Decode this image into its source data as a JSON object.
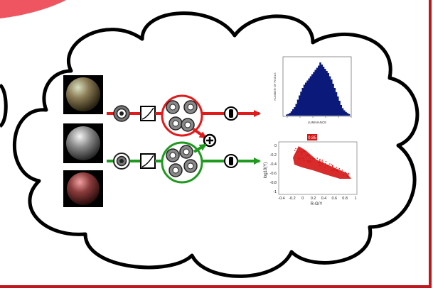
{
  "colors": {
    "border": "#c0161e",
    "cloud_stroke": "#000000",
    "red_path": "#e11b1b",
    "green_path": "#1f9a1f",
    "histogram_fill": "#0b1a7a",
    "scatter_fill": "#d41515"
  },
  "spheres": [
    {
      "name": "colored-sphere",
      "base": "#8a7a55",
      "highlight": "#c9d6b0"
    },
    {
      "name": "gray-sphere",
      "base": "#6e6e6e",
      "highlight": "#eeeeee"
    },
    {
      "name": "red-sphere",
      "base": "#7a3333",
      "highlight": "#e89a9a"
    }
  ],
  "histogram": {
    "xlabel": "LUMINANCE",
    "ylabel": "NUMBER OF PIXELS",
    "heights": [
      0.02,
      0.03,
      0.05,
      0.08,
      0.12,
      0.16,
      0.22,
      0.3,
      0.38,
      0.45,
      0.52,
      0.58,
      0.62,
      0.66,
      0.7,
      0.74,
      0.78,
      0.82,
      0.86,
      0.9,
      0.94,
      1.0,
      0.96,
      0.92,
      0.88,
      0.84,
      0.8,
      0.74,
      0.68,
      0.6,
      0.52,
      0.44,
      0.36,
      0.28,
      0.2,
      0.14,
      0.1,
      0.07,
      0.05,
      0.03
    ]
  },
  "scatter": {
    "title_badge": "0.85",
    "xlabel": "R-G/Y",
    "ylabel": "log10(Y)",
    "xticks": [
      "-0.4",
      "-0.2",
      "0",
      "0.2",
      "0.4",
      "0.6",
      "0.8",
      "1"
    ],
    "yticks": [
      "0",
      "-0.2",
      "-0.4",
      "-0.6",
      "-0.8",
      "-1"
    ]
  },
  "operators": {
    "plus": "+"
  }
}
